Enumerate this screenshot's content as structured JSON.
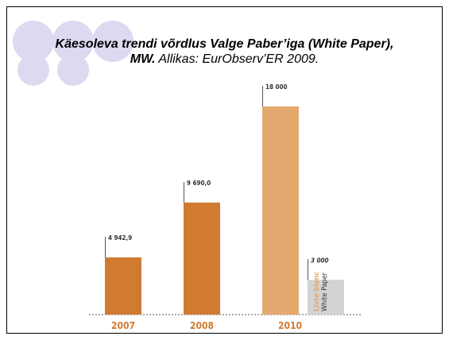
{
  "chart_data": {
    "type": "bar",
    "title": "Käesoleva trendi võrdlus Valge Paber’iga (White Paper), MW.",
    "source": "Allikas: EurObserv’ER 2009.",
    "categories": [
      "2007",
      "2008",
      "2010"
    ],
    "series": [
      {
        "values": [
          4942.9,
          9690,
          18000
        ],
        "value_labels": [
          "4 942,9",
          "9 690,0",
          "18 000"
        ],
        "colors": [
          "#d07b31",
          "#d07b31",
          "#e4a96f"
        ]
      },
      {
        "name": "White Paper",
        "name_fr": "Livre blanc",
        "values": [
          null,
          null,
          3000
        ],
        "value_labels": [
          null,
          null,
          "3 000"
        ],
        "color": "#d3d3d3"
      }
    ],
    "ylim": [
      0,
      18000
    ]
  }
}
